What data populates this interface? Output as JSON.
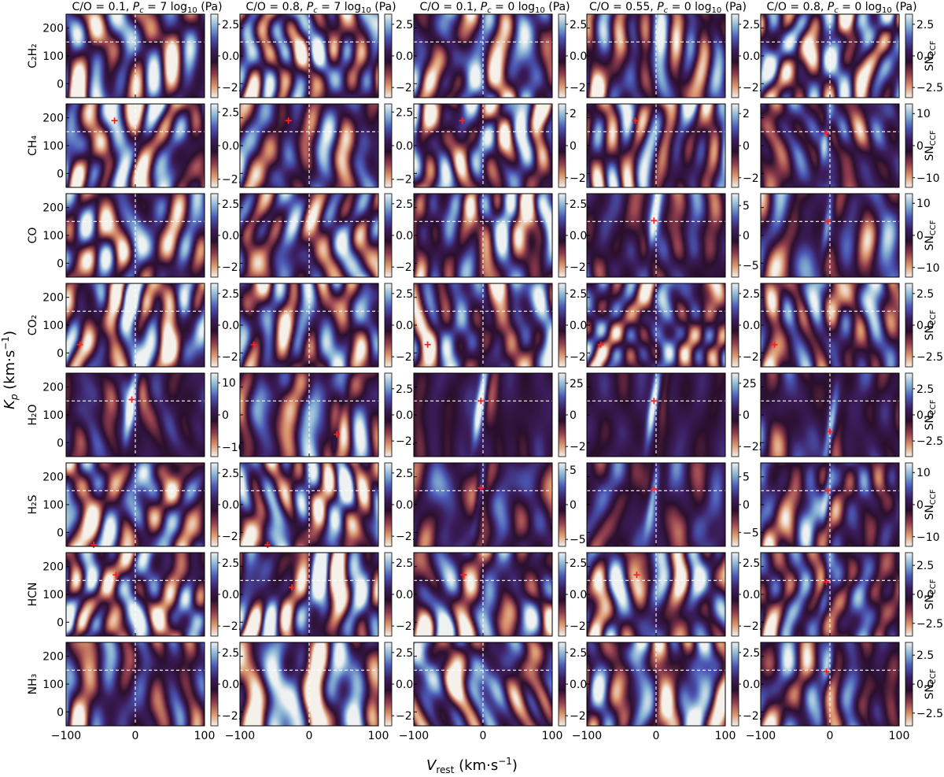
{
  "chart_data": {
    "type": "heatmap",
    "layout": "grid",
    "xlabel": "V_rest (km·s⁻¹)",
    "ylabel": "K_p (km·s⁻¹)",
    "colorbar_label": "SN_CCF",
    "x_range": [
      -100,
      100
    ],
    "y_range": [
      -50,
      250
    ],
    "x_ticks": [
      -100,
      0,
      100
    ],
    "y_ticks": [
      0,
      100,
      200
    ],
    "reference_lines": {
      "x": 0,
      "y": 150,
      "style": "white dashed"
    },
    "colormap": [
      "#f5f0ea",
      "#d9936a",
      "#8e3b4d",
      "#2a0f2c",
      "#3c1e5e",
      "#4a56b3",
      "#86b2d4",
      "#eef1f2"
    ],
    "columns": [
      {
        "co": "C/O = 0.1",
        "pc": "7"
      },
      {
        "co": "C/O = 0.8",
        "pc": "7"
      },
      {
        "co": "C/O = 0.1",
        "pc": "0"
      },
      {
        "co": "C/O = 0.55",
        "pc": "0"
      },
      {
        "co": "C/O = 0.8",
        "pc": "0"
      }
    ],
    "rows": [
      {
        "molecule": "C₂H₂",
        "panels": [
          {
            "cbar_ticks": [
              "2.5",
              "0.0",
              "−2.5"
            ],
            "cbar_max": 3.3,
            "peak": null,
            "signal": 0
          },
          {
            "cbar_ticks": [
              "2.5",
              "0.0",
              "−2.5"
            ],
            "cbar_max": 3.3,
            "peak": null,
            "signal": 0
          },
          {
            "cbar_ticks": [
              "2.5",
              "0.0",
              "−2.5"
            ],
            "cbar_max": 3.3,
            "peak": null,
            "signal": 0
          },
          {
            "cbar_ticks": [
              "2.5",
              "0.0",
              "−2.5"
            ],
            "cbar_max": 3.3,
            "peak": null,
            "signal": 0
          },
          {
            "cbar_ticks": [
              "2.5",
              "0.0",
              "−2.5"
            ],
            "cbar_max": 3.3,
            "peak": null,
            "signal": 0
          }
        ]
      },
      {
        "molecule": "CH₄",
        "panels": [
          {
            "cbar_ticks": [
              "2.5",
              "0.0",
              "−2.5"
            ],
            "cbar_max": 3.1,
            "peak": [
              -30,
              190
            ],
            "signal": 0
          },
          {
            "cbar_ticks": [
              "2.5",
              "0.0",
              "−2.5"
            ],
            "cbar_max": 3.1,
            "peak": [
              -30,
              190
            ],
            "signal": 0
          },
          {
            "cbar_ticks": [
              "2",
              "0",
              "−2"
            ],
            "cbar_max": 2.6,
            "peak": [
              -30,
              190
            ],
            "signal": 0
          },
          {
            "cbar_ticks": [
              "2",
              "0",
              "−2"
            ],
            "cbar_max": 2.6,
            "peak": [
              -30,
              190
            ],
            "signal": 0
          },
          {
            "cbar_ticks": [
              "10",
              "0",
              "−10"
            ],
            "cbar_max": 13,
            "peak": [
              -5,
              145
            ],
            "signal": 0.5
          }
        ]
      },
      {
        "molecule": "CO",
        "panels": [
          {
            "cbar_ticks": [
              "2.5",
              "0.0",
              "−2.5"
            ],
            "cbar_max": 3.3,
            "peak": null,
            "signal": 0
          },
          {
            "cbar_ticks": [
              "2.5",
              "0.0",
              "−2.5"
            ],
            "cbar_max": 3.3,
            "peak": null,
            "signal": 0
          },
          {
            "cbar_ticks": [
              "2.5",
              "0.0",
              "−2.5"
            ],
            "cbar_max": 3.3,
            "peak": null,
            "signal": 0
          },
          {
            "cbar_ticks": [
              "5",
              "0",
              "−5"
            ],
            "cbar_max": 7,
            "peak": [
              -3,
              153
            ],
            "signal": 0.6
          },
          {
            "cbar_ticks": [
              "10",
              "0",
              "−10"
            ],
            "cbar_max": 13,
            "peak": [
              -3,
              150
            ],
            "signal": 0.5
          }
        ]
      },
      {
        "molecule": "CO₂",
        "panels": [
          {
            "cbar_ticks": [
              "2.5",
              "0.0",
              "−2.5"
            ],
            "cbar_max": 3.3,
            "peak": [
              -80,
              30
            ],
            "signal": 0
          },
          {
            "cbar_ticks": [
              "2.5",
              "0.0",
              "−2.5"
            ],
            "cbar_max": 3.3,
            "peak": [
              -80,
              30
            ],
            "signal": 0
          },
          {
            "cbar_ticks": [
              "2.5",
              "0.0",
              "−2.5"
            ],
            "cbar_max": 3.3,
            "peak": [
              -80,
              30
            ],
            "signal": 0
          },
          {
            "cbar_ticks": [
              "2.5",
              "0.0",
              "−2.5"
            ],
            "cbar_max": 3.3,
            "peak": [
              -80,
              30
            ],
            "signal": 0
          },
          {
            "cbar_ticks": [
              "2.5",
              "0.0",
              "−2.5"
            ],
            "cbar_max": 3.3,
            "peak": [
              -80,
              30
            ],
            "signal": 0
          }
        ]
      },
      {
        "molecule": "H₂O",
        "panels": [
          {
            "cbar_ticks": [
              "10",
              "0",
              "−10"
            ],
            "cbar_max": 13,
            "peak": [
              -5,
              155
            ],
            "signal": 0.75
          },
          {
            "cbar_ticks": [
              "2.5",
              "0.0",
              "−2.5"
            ],
            "cbar_max": 4,
            "peak": [
              40,
              30
            ],
            "signal": 0.45
          },
          {
            "cbar_ticks": [
              "25",
              "0",
              "−25"
            ],
            "cbar_max": 33,
            "peak": [
              -3,
              150
            ],
            "signal": 0.95
          },
          {
            "cbar_ticks": [
              "25",
              "0",
              "−25"
            ],
            "cbar_max": 33,
            "peak": [
              -3,
              150
            ],
            "signal": 0.95
          },
          {
            "cbar_ticks": [
              "2.5",
              "0.0",
              "−2.5"
            ],
            "cbar_max": 4,
            "peak": [
              0,
              40
            ],
            "signal": 0.7
          }
        ]
      },
      {
        "molecule": "H₂S",
        "panels": [
          {
            "cbar_ticks": [
              "2.5",
              "0.0",
              "−2.5"
            ],
            "cbar_max": 3.3,
            "peak": [
              -60,
              -50
            ],
            "signal": 0
          },
          {
            "cbar_ticks": [
              "2.5",
              "0.0",
              "−2.5"
            ],
            "cbar_max": 3.3,
            "peak": [
              -60,
              -50
            ],
            "signal": 0
          },
          {
            "cbar_ticks": [
              "5",
              "0",
              "−5"
            ],
            "cbar_max": 6,
            "peak": [
              -3,
              160
            ],
            "signal": 0.55
          },
          {
            "cbar_ticks": [
              "5",
              "0",
              "−5"
            ],
            "cbar_max": 7.5,
            "peak": [
              -3,
              155
            ],
            "signal": 0.6
          },
          {
            "cbar_ticks": [
              "10",
              "0",
              "−10"
            ],
            "cbar_max": 13,
            "peak": [
              -3,
              150
            ],
            "signal": 0.5
          }
        ]
      },
      {
        "molecule": "HCN",
        "panels": [
          {
            "cbar_ticks": [
              "2.5",
              "0.0",
              "−2.5"
            ],
            "cbar_max": 3.3,
            "peak": [
              -28,
              170
            ],
            "signal": 0
          },
          {
            "cbar_ticks": [
              "2.5",
              "0.0",
              "−2.5"
            ],
            "cbar_max": 3.3,
            "peak": [
              -25,
              125
            ],
            "signal": 0
          },
          {
            "cbar_ticks": [
              "2.5",
              "0.0",
              "−2.5"
            ],
            "cbar_max": 3.3,
            "peak": [
              -28,
              170
            ],
            "signal": 0
          },
          {
            "cbar_ticks": [
              "2.5",
              "0.0",
              "−2.5"
            ],
            "cbar_max": 3.3,
            "peak": [
              -28,
              170
            ],
            "signal": 0
          },
          {
            "cbar_ticks": [
              "2.5",
              "0.0",
              "−2.5"
            ],
            "cbar_max": 3.6,
            "peak": [
              -5,
              145
            ],
            "signal": 0.35
          }
        ]
      },
      {
        "molecule": "NH₃",
        "panels": [
          {
            "cbar_ticks": [
              "2.5",
              "0.0",
              "−2.5"
            ],
            "cbar_max": 3.3,
            "peak": null,
            "signal": 0
          },
          {
            "cbar_ticks": [
              "2.5",
              "0.0",
              "−2.5"
            ],
            "cbar_max": 3.3,
            "peak": null,
            "signal": 0
          },
          {
            "cbar_ticks": [
              "2.5",
              "0.0",
              "−2.5"
            ],
            "cbar_max": 3.3,
            "peak": null,
            "signal": 0
          },
          {
            "cbar_ticks": [
              "2.5",
              "0.0",
              "−2.5"
            ],
            "cbar_max": 3.3,
            "peak": null,
            "signal": 0
          },
          {
            "cbar_ticks": [
              "2.5",
              "0.0",
              "−2.5"
            ],
            "cbar_max": 3.6,
            "peak": [
              -5,
              145
            ],
            "signal": 0.35
          }
        ]
      }
    ]
  }
}
